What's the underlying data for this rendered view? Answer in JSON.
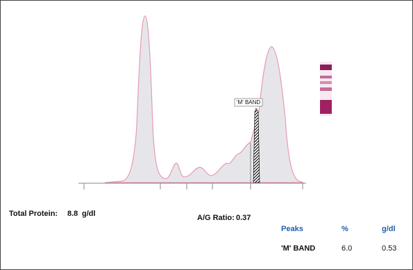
{
  "trace": {
    "marker_label": "'M' BAND"
  },
  "summary": {
    "total_protein_label": "Total Protein:",
    "total_protein_value": "8.8",
    "total_protein_unit": "g/dl",
    "ag_ratio_label": "A/G Ratio:",
    "ag_ratio_value": "0.37"
  },
  "table": {
    "headers": [
      "Peaks",
      "%",
      "g/dl"
    ],
    "rows": [
      [
        "'M' BAND",
        "6.0",
        "0.53"
      ]
    ]
  }
}
